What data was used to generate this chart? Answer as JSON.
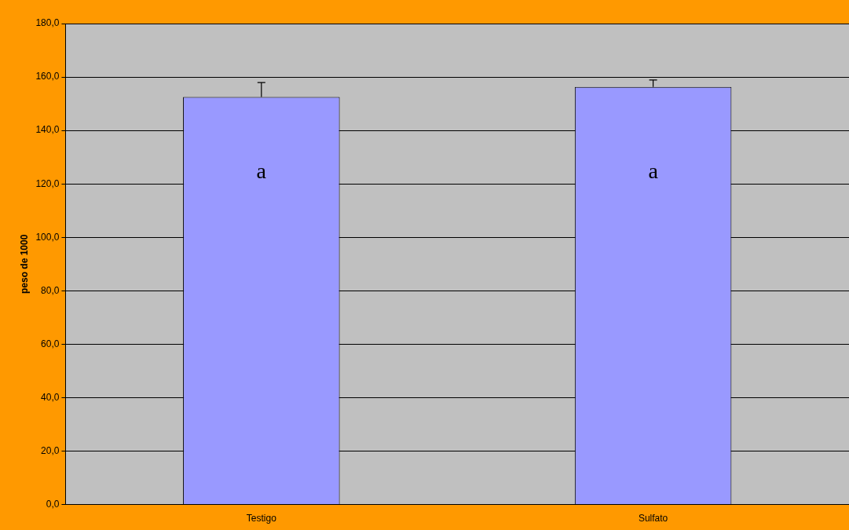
{
  "chart_data": {
    "type": "bar",
    "ylabel": "peso de 1000",
    "categories": [
      "Testigo",
      "Sulfato"
    ],
    "values": [
      152.5,
      156.3
    ],
    "color": "#9999ff",
    "errors": [
      [
        152.5,
        157.9
      ],
      [
        156.3,
        158.9
      ]
    ],
    "ylim": [
      0,
      180
    ],
    "yticks": [
      {
        "value": 0,
        "label": "0,0"
      },
      {
        "value": 20,
        "label": "20,0"
      },
      {
        "value": 40,
        "label": "40,0"
      },
      {
        "value": 60,
        "label": "60,0"
      },
      {
        "value": 80,
        "label": "80,0"
      },
      {
        "value": 100,
        "label": "100,0"
      },
      {
        "value": 120,
        "label": "120,0"
      },
      {
        "value": 140,
        "label": "140,0"
      },
      {
        "value": 160,
        "label": "160,0"
      },
      {
        "value": 180,
        "label": "180,0"
      }
    ],
    "annotations": [
      "a",
      "a"
    ],
    "grid": "y",
    "legend": false
  }
}
